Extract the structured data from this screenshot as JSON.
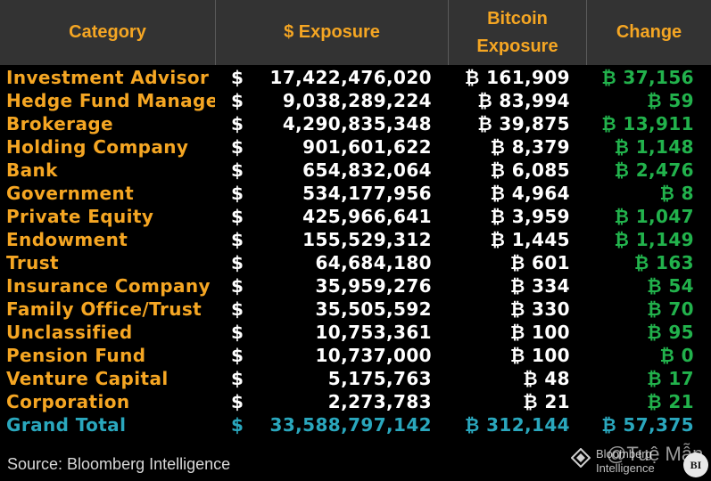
{
  "header": {
    "category": "Category",
    "exposure": "$ Exposure",
    "btc_line1": "Bitcoin",
    "btc_line2": "Exposure",
    "change": "Change"
  },
  "currency_symbol": "$",
  "rows": [
    {
      "category": "Investment Advisor",
      "exposure": "17,422,476,020",
      "btc": "₿ 161,909",
      "change": "₿ 37,156"
    },
    {
      "category": "Hedge Fund Manager",
      "exposure": "9,038,289,224",
      "btc": "₿ 83,994",
      "change": "₿ 59"
    },
    {
      "category": "Brokerage",
      "exposure": "4,290,835,348",
      "btc": "₿ 39,875",
      "change": "₿ 13,911"
    },
    {
      "category": "Holding Company",
      "exposure": "901,601,622",
      "btc": "₿ 8,379",
      "change": "₿ 1,148"
    },
    {
      "category": "Bank",
      "exposure": "654,832,064",
      "btc": "₿ 6,085",
      "change": "₿ 2,476"
    },
    {
      "category": "Government",
      "exposure": "534,177,956",
      "btc": "₿ 4,964",
      "change": "₿ 8"
    },
    {
      "category": "Private Equity",
      "exposure": "425,966,641",
      "btc": "₿ 3,959",
      "change": "₿ 1,047"
    },
    {
      "category": "Endowment",
      "exposure": "155,529,312",
      "btc": "₿ 1,445",
      "change": "₿ 1,149"
    },
    {
      "category": "Trust",
      "exposure": "64,684,180",
      "btc": "₿ 601",
      "change": "₿ 163"
    },
    {
      "category": "Insurance Company",
      "exposure": "35,959,276",
      "btc": "₿ 334",
      "change": "₿ 54"
    },
    {
      "category": "Family Office/Trust",
      "exposure": "35,505,592",
      "btc": "₿ 330",
      "change": "₿ 70"
    },
    {
      "category": "Unclassified",
      "exposure": "10,753,361",
      "btc": "₿ 100",
      "change": "₿ 95"
    },
    {
      "category": "Pension Fund",
      "exposure": "10,737,000",
      "btc": "₿ 100",
      "change": "₿ 0"
    },
    {
      "category": "Venture Capital",
      "exposure": "5,175,763",
      "btc": "₿ 48",
      "change": "₿ 17"
    },
    {
      "category": "Corporation",
      "exposure": "2,273,783",
      "btc": "₿ 21",
      "change": "₿ 21"
    }
  ],
  "total": {
    "category": "Grand Total",
    "exposure": "33,588,797,142",
    "btc": "₿ 312,144",
    "change": "₿ 57,375"
  },
  "source": "Source: Bloomberg Intelligence",
  "logo": {
    "line1": "Bloomberg",
    "line2": "Intelligence",
    "badge": "BI"
  },
  "watermark_handle": "@Tuệ Mẫn",
  "colors": {
    "category": "#f5a623",
    "change": "#22b24c",
    "total": "#2aa7bd",
    "header_bg": "#333333"
  }
}
